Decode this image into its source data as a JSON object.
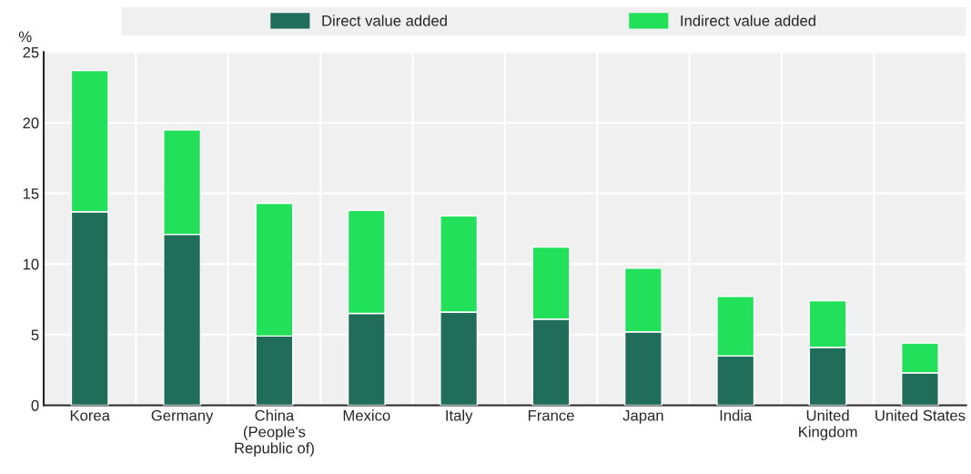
{
  "chart_data": {
    "type": "bar",
    "stacked": true,
    "ylabel": "%",
    "categories": [
      "Korea",
      "Germany",
      "China\n(People's\nRepublic of)",
      "Mexico",
      "Italy",
      "France",
      "Japan",
      "India",
      "United\nKingdom",
      "United States"
    ],
    "series": [
      {
        "name": "Direct value added",
        "color": "#206d5a",
        "values": [
          13.7,
          12.1,
          4.9,
          6.5,
          6.6,
          6.1,
          5.2,
          3.5,
          4.1,
          2.3
        ]
      },
      {
        "name": "Indirect value added",
        "color": "#22e05a",
        "values": [
          10.0,
          7.4,
          9.4,
          7.3,
          6.8,
          5.1,
          4.5,
          4.2,
          3.3,
          2.1
        ]
      }
    ],
    "ylim": [
      0,
      25
    ],
    "yticks": [
      0,
      5,
      10,
      15,
      20,
      25
    ],
    "grid": true,
    "legend": "top"
  }
}
